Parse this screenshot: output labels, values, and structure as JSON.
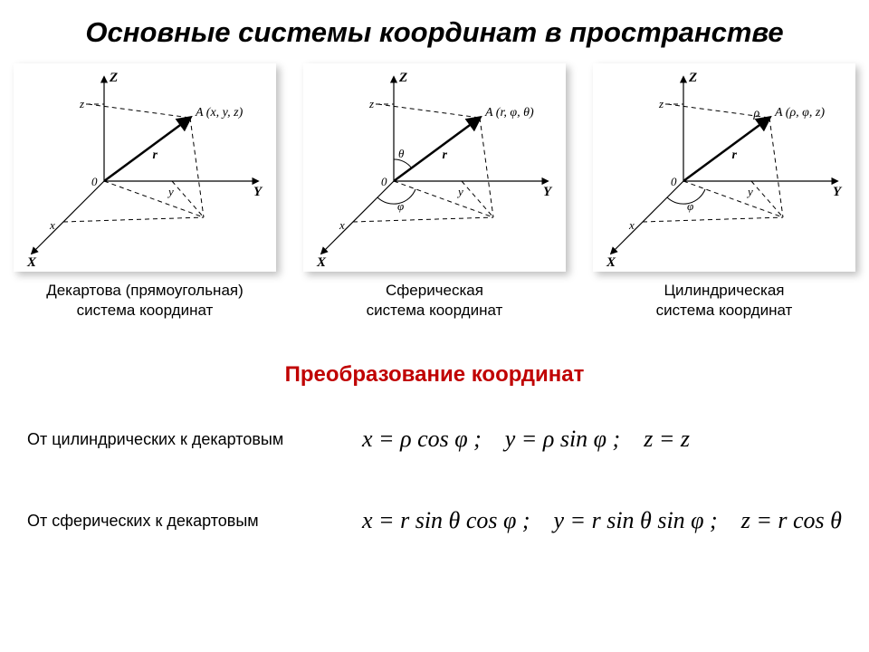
{
  "title": "Основные системы координат в пространстве",
  "panels": [
    {
      "caption": "Декартова (прямоугольная)\nсистема координат",
      "point_label": "A (x, y, z)",
      "show_theta": false,
      "show_phi": false,
      "show_rho_label": false
    },
    {
      "caption": "Сферическая\nсистема координат",
      "point_label": "A (r, φ, θ)",
      "show_theta": true,
      "show_phi": true,
      "show_rho_label": false
    },
    {
      "caption": "Цилиндрическая\nсистема координат",
      "point_label": "A (ρ, φ, z)",
      "show_theta": false,
      "show_phi": true,
      "show_rho_label": true
    }
  ],
  "subheading": "Преобразование координат",
  "conversions": [
    {
      "label": "От цилиндрических к декартовым",
      "formula": "x = ρ cos φ ; y = ρ sin φ ; z = z"
    },
    {
      "label": "От сферических к декартовым",
      "formula": "x = r sin θ cos φ ; y = r sin θ sin φ ; z = r cos θ"
    }
  ],
  "style": {
    "axis_color": "#000000",
    "dash": "5,4",
    "vector_width": 2.5,
    "axis_label_size": 15,
    "point_label_size": 14,
    "background": "#ffffff"
  }
}
